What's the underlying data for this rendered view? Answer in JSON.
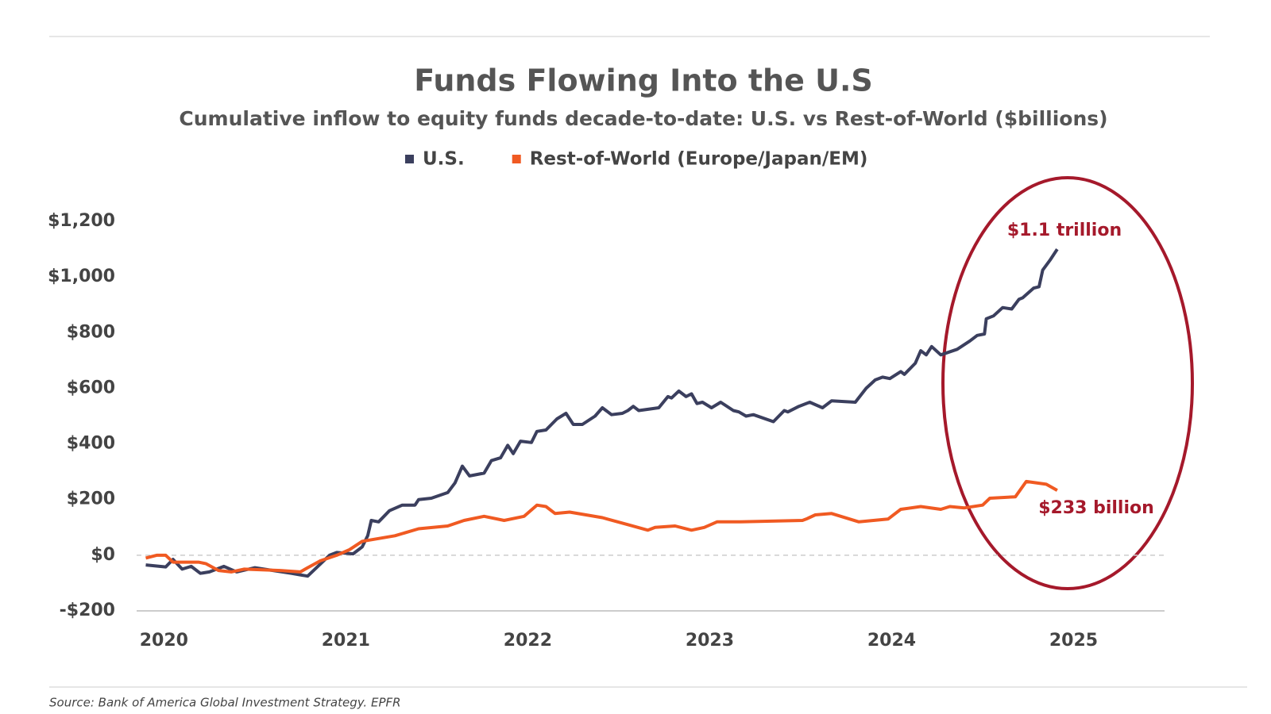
{
  "chart_data": {
    "type": "line",
    "title": "Funds Flowing Into the U.S",
    "subtitle": "Cumulative inflow to equity funds decade-to-date: U.S. vs Rest-of-World ($billions)",
    "source": "Source: Bank of America Global Investment Strategy. EPFR",
    "xlim": [
      2019.85,
      2025.5
    ],
    "xticks": [
      2020,
      2021,
      2022,
      2023,
      2024,
      2025
    ],
    "ylim": [
      -200,
      1200
    ],
    "yticks": [
      {
        "value": -200,
        "label": "-$200"
      },
      {
        "value": 0,
        "label": "$0"
      },
      {
        "value": 200,
        "label": "$200"
      },
      {
        "value": 400,
        "label": "$400"
      },
      {
        "value": 600,
        "label": "$600"
      },
      {
        "value": 800,
        "label": "$800"
      },
      {
        "value": 1000,
        "label": "$1,000"
      },
      {
        "value": 1200,
        "label": "$1,200"
      }
    ],
    "annotations": [
      "$1.1 trillion",
      "$233 billion"
    ],
    "legend": "top",
    "series": [
      {
        "name": "U.S.",
        "color": "#3b3f5e",
        "x": [
          2019.9,
          2020.01,
          2020.05,
          2020.1,
          2020.15,
          2020.2,
          2020.25,
          2020.33,
          2020.4,
          2020.5,
          2020.6,
          2020.7,
          2020.79,
          2020.91,
          2020.95,
          2021.04,
          2021.09,
          2021.12,
          2021.14,
          2021.18,
          2021.24,
          2021.31,
          2021.38,
          2021.4,
          2021.47,
          2021.56,
          2021.6,
          2021.64,
          2021.68,
          2021.76,
          2021.8,
          2021.85,
          2021.89,
          2021.92,
          2021.96,
          2022.02,
          2022.05,
          2022.1,
          2022.16,
          2022.21,
          2022.25,
          2022.3,
          2022.37,
          2022.41,
          2022.46,
          2022.52,
          2022.55,
          2022.58,
          2022.61,
          2022.72,
          2022.77,
          2022.79,
          2022.83,
          2022.87,
          2022.9,
          2022.93,
          2022.96,
          2023.01,
          2023.06,
          2023.13,
          2023.16,
          2023.2,
          2023.24,
          2023.35,
          2023.41,
          2023.43,
          2023.49,
          2023.55,
          2023.62,
          2023.67,
          2023.8,
          2023.86,
          2023.91,
          2023.95,
          2023.99,
          2024.05,
          2024.07,
          2024.13,
          2024.16,
          2024.19,
          2024.22,
          2024.27,
          2024.36,
          2024.43,
          2024.47,
          2024.51,
          2024.52,
          2024.56,
          2024.61,
          2024.66,
          2024.7,
          2024.72,
          2024.78,
          2024.81,
          2024.83,
          2024.87,
          2024.91
        ],
        "values": [
          -35,
          -42,
          -15,
          -50,
          -40,
          -65,
          -60,
          -40,
          -60,
          -45,
          -55,
          -65,
          -75,
          0,
          10,
          5,
          30,
          70,
          125,
          120,
          160,
          180,
          180,
          200,
          205,
          225,
          260,
          320,
          285,
          295,
          340,
          350,
          395,
          365,
          410,
          405,
          445,
          450,
          490,
          510,
          470,
          470,
          500,
          530,
          505,
          510,
          520,
          535,
          520,
          530,
          570,
          565,
          590,
          570,
          580,
          545,
          550,
          530,
          550,
          520,
          515,
          500,
          505,
          480,
          520,
          515,
          535,
          550,
          530,
          555,
          550,
          600,
          630,
          640,
          635,
          660,
          650,
          690,
          735,
          720,
          750,
          720,
          740,
          770,
          790,
          795,
          850,
          860,
          890,
          885,
          920,
          925,
          960,
          965,
          1025,
          1060,
          1100
        ]
      },
      {
        "name": "Rest-of-World (Europe/Japan/EM)",
        "color": "#f05a22",
        "x": [
          2019.9,
          2019.96,
          2020.01,
          2020.05,
          2020.19,
          2020.23,
          2020.3,
          2020.37,
          2020.44,
          2020.64,
          2020.75,
          2020.79,
          2020.86,
          2020.95,
          2021.02,
          2021.09,
          2021.27,
          2021.4,
          2021.56,
          2021.65,
          2021.76,
          2021.87,
          2021.98,
          2022.05,
          2022.1,
          2022.15,
          2022.23,
          2022.41,
          2022.55,
          2022.66,
          2022.7,
          2022.81,
          2022.9,
          2022.97,
          2023.04,
          2023.17,
          2023.51,
          2023.53,
          2023.58,
          2023.67,
          2023.82,
          2023.98,
          2024.05,
          2024.16,
          2024.27,
          2024.32,
          2024.4,
          2024.5,
          2024.54,
          2024.68,
          2024.74,
          2024.85,
          2024.91
        ],
        "values": [
          -10,
          0,
          0,
          -25,
          -25,
          -30,
          -55,
          -60,
          -50,
          -55,
          -60,
          -45,
          -20,
          0,
          20,
          50,
          70,
          95,
          105,
          125,
          140,
          125,
          140,
          180,
          175,
          150,
          155,
          135,
          110,
          90,
          100,
          105,
          90,
          100,
          120,
          120,
          125,
          130,
          145,
          150,
          120,
          130,
          165,
          175,
          165,
          175,
          170,
          180,
          205,
          210,
          265,
          255,
          233
        ]
      }
    ]
  }
}
